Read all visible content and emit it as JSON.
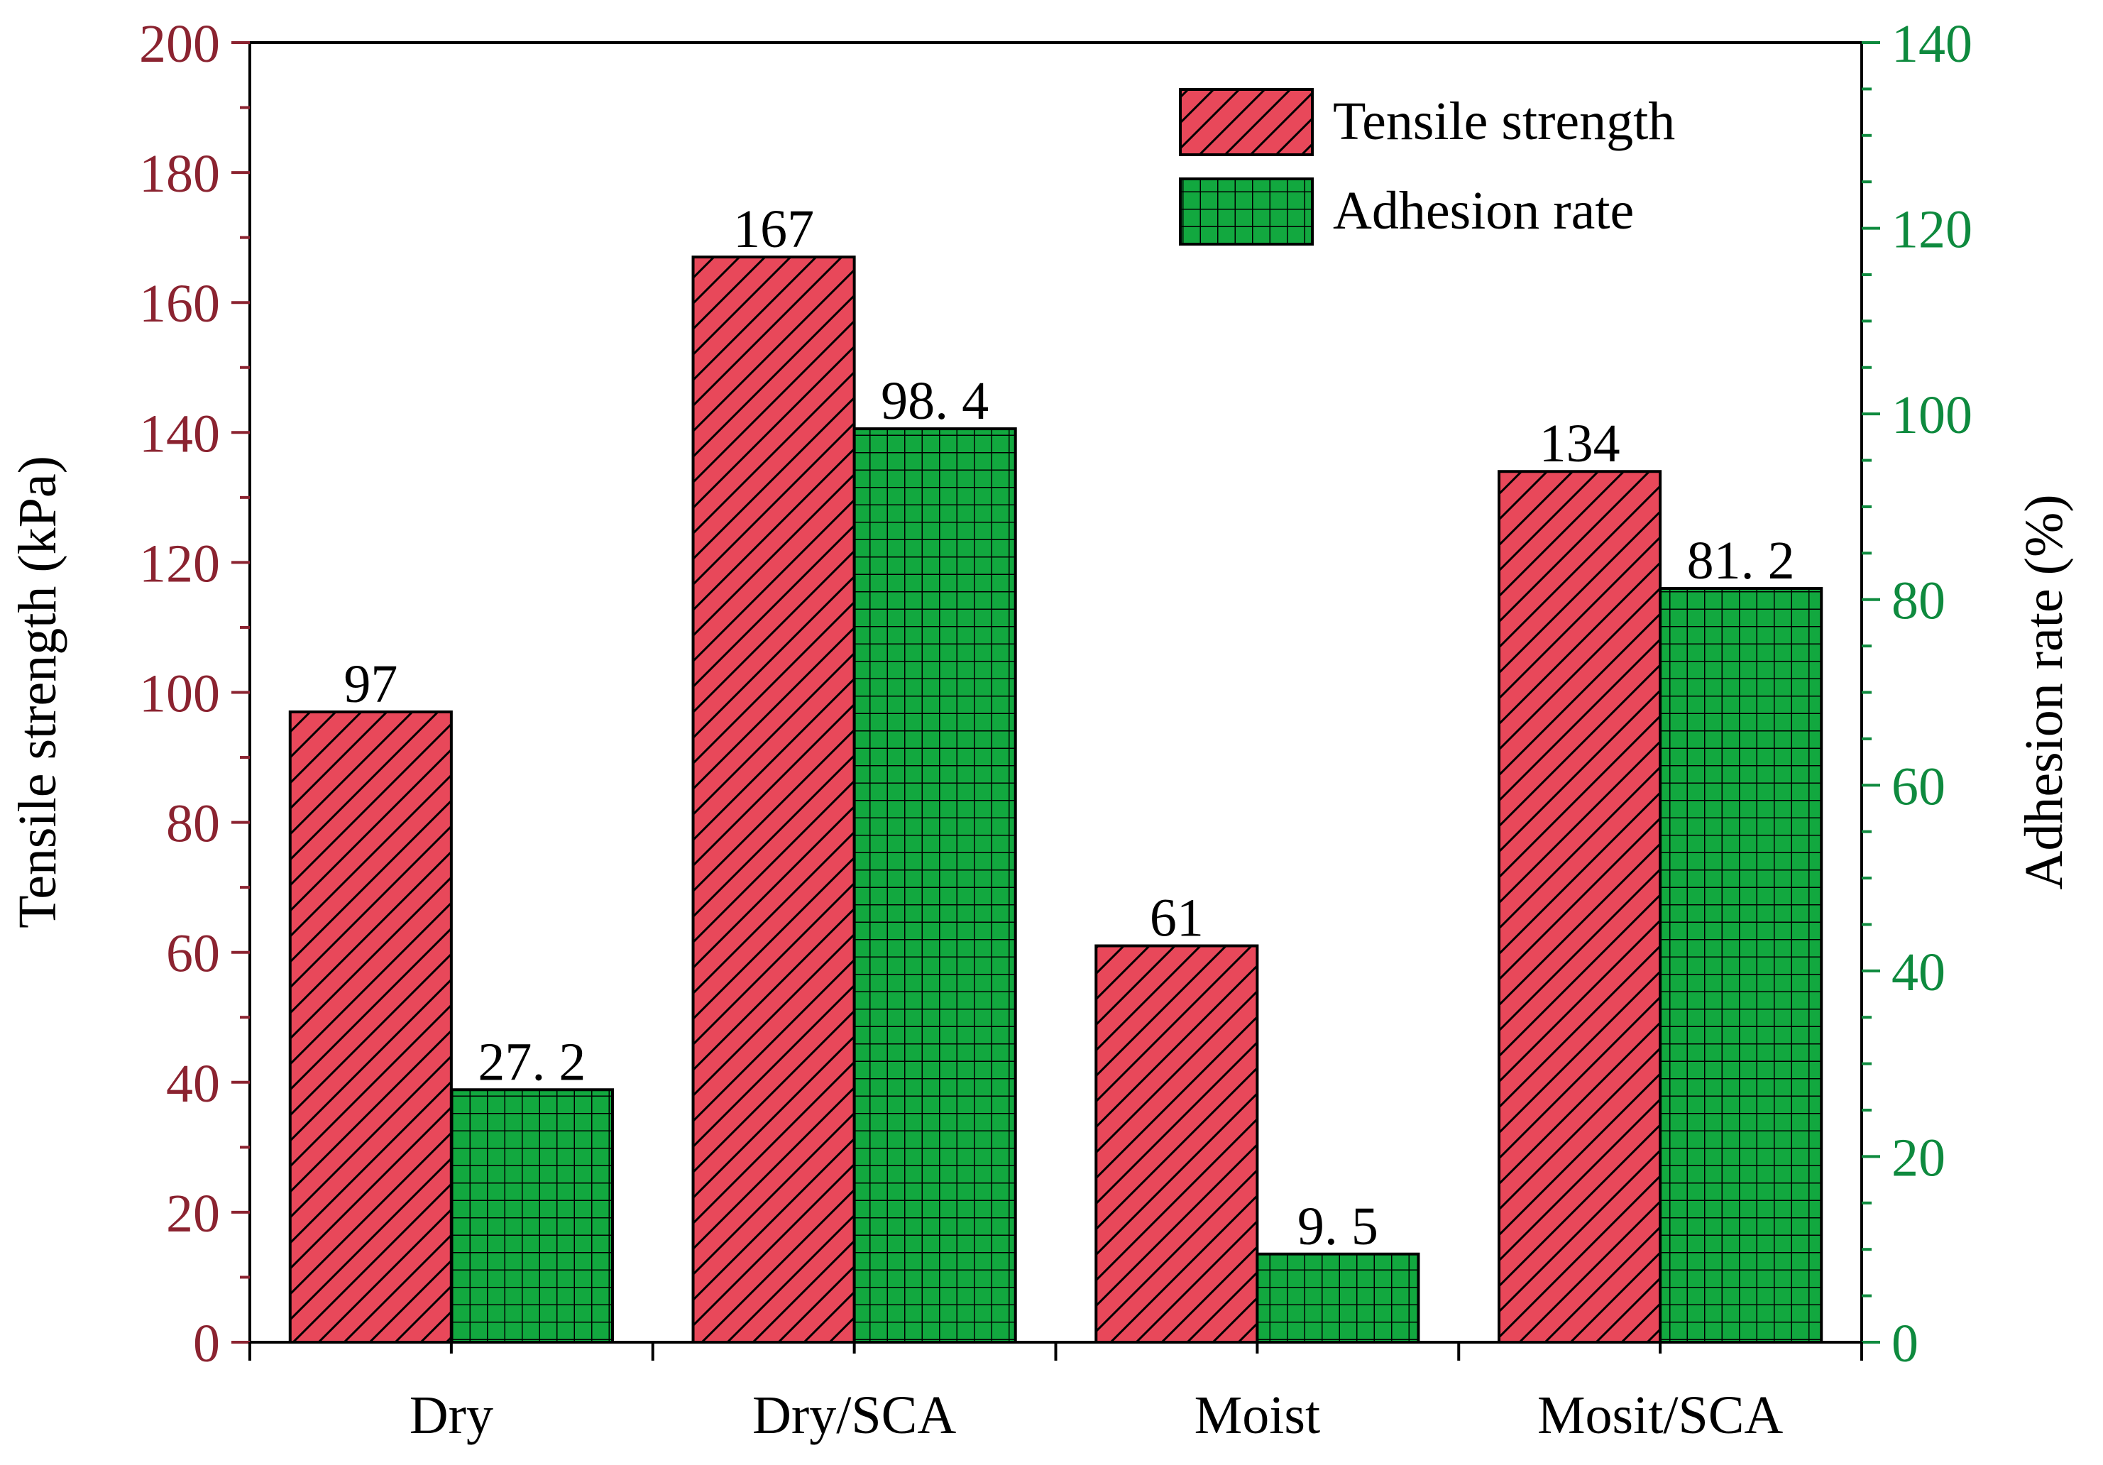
{
  "chart_data": {
    "type": "bar",
    "title": "",
    "categories": [
      "Dry",
      "Dry/SCA",
      "Moist",
      "Mosit/SCA"
    ],
    "series": [
      {
        "name": "Tensile strength",
        "axis": "left",
        "values": [
          97,
          167,
          61,
          134
        ],
        "labels": [
          "97",
          "167",
          "61",
          "134"
        ],
        "color": "#e8485a",
        "pattern": "diagonal-hatch"
      },
      {
        "name": "Adhesion rate",
        "axis": "right",
        "values": [
          27.2,
          98.4,
          9.5,
          81.2
        ],
        "labels": [
          "27. 2",
          "98. 4",
          "9. 5",
          "81. 2"
        ],
        "color": "#12a83f",
        "pattern": "grid"
      }
    ],
    "left_axis": {
      "label": "Tensile strength (kPa)",
      "range": [
        0,
        200
      ],
      "ticks": [
        "0",
        "20",
        "40",
        "60",
        "80",
        "100",
        "120",
        "140",
        "160",
        "180",
        "200"
      ],
      "color": "#8b2330"
    },
    "right_axis": {
      "label": "Adhesion rate (%)",
      "range": [
        0,
        140
      ],
      "ticks": [
        "0",
        "20",
        "40",
        "60",
        "80",
        "100",
        "120",
        "140"
      ],
      "color": "#0e8a3e"
    },
    "legend": {
      "placement": "top-right",
      "entries": [
        "Tensile strength",
        "Adhesion rate"
      ]
    },
    "grid": false
  }
}
